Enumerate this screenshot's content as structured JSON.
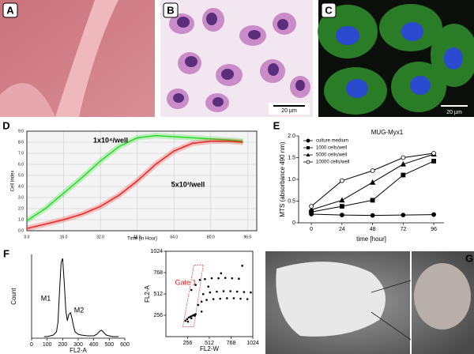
{
  "panel_labels": [
    "A",
    "B",
    "C",
    "D",
    "E",
    "F",
    "G"
  ],
  "scale_bars": [
    "20 µm",
    "20 µm"
  ],
  "chart_data": [
    {
      "type": "line",
      "xlabel": "Time (in Hour)",
      "ylabel": "Cell Index",
      "grid": true,
      "x": [
        0,
        8,
        16,
        24,
        32,
        40,
        48,
        56,
        64,
        72,
        80,
        88,
        94
      ],
      "series": [
        {
          "name": "1x10⁴/well",
          "color": "#22dd22",
          "values": [
            0.9,
            2.0,
            3.4,
            4.8,
            6.3,
            7.6,
            8.4,
            8.6,
            8.5,
            8.4,
            8.3,
            8.2,
            8.1
          ]
        },
        {
          "name": "5x10³/well",
          "color": "#ee2222",
          "values": [
            0.2,
            0.6,
            1.0,
            1.5,
            2.2,
            3.2,
            4.5,
            6.0,
            7.2,
            7.9,
            8.1,
            8.1,
            8.0
          ]
        }
      ],
      "xlim": [
        0,
        100
      ],
      "ylim": [
        0,
        9
      ],
      "xticks": [
        {
          "value": 0,
          "label": "0.0"
        },
        {
          "value": 16,
          "label": "16.0"
        },
        {
          "value": 32,
          "label": "32.0"
        },
        {
          "value": 48,
          "label": "48.0"
        },
        {
          "value": 64,
          "label": "64.0"
        },
        {
          "value": 80,
          "label": "80.0"
        },
        {
          "value": 96,
          "label": "96.0"
        }
      ],
      "yticks": [
        {
          "value": 0,
          "label": "0.0"
        },
        {
          "value": 1,
          "label": "1.0"
        },
        {
          "value": 2,
          "label": "2.0"
        },
        {
          "value": 3,
          "label": "3.0"
        },
        {
          "value": 4,
          "label": "4.0"
        },
        {
          "value": 5,
          "label": "5.0"
        },
        {
          "value": 6,
          "label": "6.0"
        },
        {
          "value": 7,
          "label": "7.0"
        },
        {
          "value": 8,
          "label": "8.0"
        },
        {
          "value": 9,
          "label": "9.0"
        }
      ]
    },
    {
      "type": "line",
      "title": "MUG-Myx1",
      "xlabel": "time [hour]",
      "ylabel": "MTS (absorbance 490 nm)",
      "grid": false,
      "x": [
        0,
        24,
        48,
        72,
        96
      ],
      "series": [
        {
          "name": "culture medium",
          "color": "#000000",
          "marker": "circle",
          "values": [
            0.2,
            0.18,
            0.17,
            0.18,
            0.19
          ]
        },
        {
          "name": "1000 cells/well",
          "color": "#000000",
          "marker": "square",
          "values": [
            0.25,
            0.38,
            0.52,
            1.1,
            1.42
          ]
        },
        {
          "name": "5000 cells/well",
          "color": "#000000",
          "marker": "triangle",
          "values": [
            0.3,
            0.52,
            0.93,
            1.35,
            1.58
          ]
        },
        {
          "name": "10000 cells/well",
          "color": "#000000",
          "marker": "open-circle",
          "values": [
            0.38,
            0.97,
            1.2,
            1.5,
            1.6
          ]
        }
      ],
      "xlim": [
        -10,
        104
      ],
      "ylim": [
        0,
        2
      ],
      "xticks": [
        0,
        24,
        48,
        72,
        96
      ],
      "yticks": [
        0,
        0.5,
        {
          "value": 1,
          "label": "1.0"
        },
        1.5,
        {
          "value": 2,
          "label": "2.0"
        }
      ]
    },
    {
      "type": "line",
      "xlabel": "FL2-A",
      "ylabel": "Count",
      "grid": false,
      "annotations": [
        "M1",
        "M2"
      ],
      "x": [
        80,
        100,
        120,
        140,
        160,
        170,
        180,
        190,
        200,
        210,
        220,
        230,
        240,
        250,
        260,
        270,
        280,
        300,
        320,
        360,
        400,
        420,
        440,
        450,
        460,
        480,
        520,
        560
      ],
      "series": [
        {
          "color": "#000000",
          "values": [
            2,
            2,
            3,
            4,
            8,
            20,
            60,
            95,
            100,
            70,
            35,
            22,
            30,
            32,
            25,
            15,
            8,
            5,
            4,
            3,
            3,
            5,
            9,
            10,
            8,
            4,
            2,
            2
          ]
        }
      ],
      "xlim": [
        0,
        600
      ],
      "ylim": [
        0,
        105
      ],
      "xticks": [
        0,
        100,
        200,
        300,
        400,
        500,
        600
      ]
    },
    {
      "type": "scatter",
      "xlabel": "FL2-W",
      "ylabel": "FL2-A",
      "grid": false,
      "annotations": [
        "Gate 1"
      ],
      "color": "#000000",
      "x": [
        230,
        250,
        270,
        290,
        310,
        330,
        350,
        260,
        300,
        340,
        380,
        420,
        480,
        560,
        640,
        720,
        800,
        880,
        960,
        440,
        520,
        600,
        680,
        760,
        840,
        920,
        1000,
        400,
        460,
        540,
        620,
        700,
        780,
        860,
        300,
        350,
        420,
        500,
        650,
        900
      ],
      "values": [
        190,
        210,
        230,
        240,
        250,
        260,
        270,
        180,
        220,
        250,
        380,
        420,
        440,
        450,
        455,
        460,
        460,
        455,
        450,
        510,
        530,
        540,
        545,
        545,
        540,
        535,
        530,
        680,
        690,
        700,
        700,
        705,
        700,
        695,
        560,
        620,
        300,
        600,
        760,
        850
      ],
      "xlim": [
        0,
        1024
      ],
      "ylim": [
        0,
        1024
      ],
      "xticks": [
        256,
        512,
        768,
        1024
      ],
      "yticks": [
        256,
        512,
        768,
        1024
      ]
    }
  ]
}
